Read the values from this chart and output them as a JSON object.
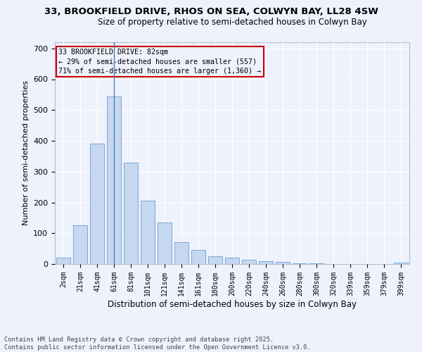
{
  "title1": "33, BROOKFIELD DRIVE, RHOS ON SEA, COLWYN BAY, LL28 4SW",
  "title2": "Size of property relative to semi-detached houses in Colwyn Bay",
  "xlabel": "Distribution of semi-detached houses by size in Colwyn Bay",
  "ylabel": "Number of semi-detached properties",
  "categories": [
    "2sqm",
    "21sqm",
    "41sqm",
    "61sqm",
    "81sqm",
    "101sqm",
    "121sqm",
    "141sqm",
    "161sqm",
    "180sqm",
    "200sqm",
    "220sqm",
    "240sqm",
    "260sqm",
    "280sqm",
    "300sqm",
    "320sqm",
    "339sqm",
    "359sqm",
    "379sqm",
    "399sqm"
  ],
  "values": [
    20,
    125,
    390,
    545,
    330,
    205,
    135,
    72,
    45,
    25,
    20,
    13,
    9,
    7,
    3,
    2,
    0,
    0,
    0,
    0,
    5
  ],
  "bar_color": "#c5d8f0",
  "bar_edge_color": "#7aa8d4",
  "vline_x_index": 3,
  "vline_color": "#5577bb",
  "annotation_title": "33 BROOKFIELD DRIVE: 82sqm",
  "annotation_line2": "← 29% of semi-detached houses are smaller (557)",
  "annotation_line3": "71% of semi-detached houses are larger (1,360) →",
  "box_color": "#cc0000",
  "background_color": "#eef2fc",
  "grid_color": "#ffffff",
  "footer1": "Contains HM Land Registry data © Crown copyright and database right 2025.",
  "footer2": "Contains public sector information licensed under the Open Government Licence v3.0.",
  "ylim": [
    0,
    720
  ],
  "yticks": [
    0,
    100,
    200,
    300,
    400,
    500,
    600,
    700
  ]
}
